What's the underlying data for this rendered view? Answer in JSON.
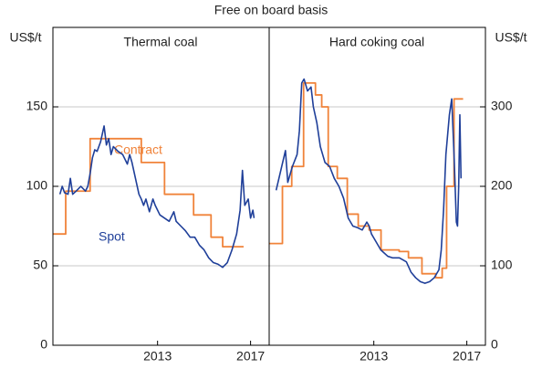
{
  "title": "Free on board basis",
  "chart_data": [
    {
      "type": "line",
      "title": "Thermal coal",
      "y_label": "US$/t",
      "xlim": [
        2009.0,
        2018.3
      ],
      "xticks": [
        {
          "value": 2013.5,
          "label": "2013"
        },
        {
          "value": 2017.5,
          "label": "2017"
        }
      ],
      "ylim": [
        0,
        200
      ],
      "yticks": [
        0,
        50,
        100,
        150
      ],
      "grid": true,
      "series": [
        {
          "name": "Contract",
          "color": "#f0833a",
          "step": true,
          "x": [
            2009.0,
            2009.55,
            2010.6,
            2011.6,
            2012.8,
            2013.8,
            2015.05,
            2015.8,
            2016.3,
            2017.2
          ],
          "values": [
            70,
            97,
            130,
            130,
            115,
            95,
            82,
            68,
            62,
            62
          ]
        },
        {
          "name": "Spot",
          "color": "#1f3f99",
          "step": false,
          "x": [
            2009.3,
            2009.4,
            2009.5,
            2009.65,
            2009.75,
            2009.85,
            2010.0,
            2010.2,
            2010.4,
            2010.5,
            2010.6,
            2010.7,
            2010.8,
            2010.9,
            2011.05,
            2011.2,
            2011.3,
            2011.4,
            2011.5,
            2011.6,
            2011.8,
            2012.0,
            2012.2,
            2012.3,
            2012.4,
            2012.55,
            2012.7,
            2012.8,
            2012.9,
            2013.0,
            2013.15,
            2013.3,
            2013.4,
            2013.6,
            2013.8,
            2014.0,
            2014.2,
            2014.3,
            2014.5,
            2014.7,
            2014.9,
            2015.1,
            2015.3,
            2015.5,
            2015.7,
            2015.9,
            2016.1,
            2016.3,
            2016.5,
            2016.7,
            2016.9,
            2017.05,
            2017.15,
            2017.25,
            2017.4,
            2017.5,
            2017.6,
            2017.65
          ],
          "values": [
            95,
            100,
            96,
            95,
            105,
            95,
            97,
            100,
            97,
            100,
            108,
            118,
            123,
            122,
            128,
            138,
            126,
            130,
            120,
            125,
            122,
            120,
            114,
            120,
            115,
            105,
            95,
            92,
            88,
            92,
            84,
            92,
            88,
            82,
            80,
            78,
            84,
            78,
            75,
            72,
            68,
            68,
            63,
            60,
            55,
            52,
            51,
            49,
            52,
            60,
            70,
            85,
            110,
            88,
            92,
            80,
            85,
            80
          ]
        }
      ]
    },
    {
      "type": "line",
      "title": "Hard coking coal",
      "y_label": "US$/t",
      "xlim": [
        2009.0,
        2018.3
      ],
      "xticks": [
        {
          "value": 2013.5,
          "label": "2013"
        },
        {
          "value": 2017.5,
          "label": "2017"
        }
      ],
      "ylim": [
        0,
        400
      ],
      "yticks": [
        0,
        100,
        200,
        300
      ],
      "grid": true,
      "series": [
        {
          "color": "#f0833a",
          "step": true,
          "x": [
            2009.0,
            2009.57,
            2009.97,
            2010.48,
            2010.99,
            2011.26,
            2011.54,
            2011.93,
            2012.36,
            2012.83,
            2013.3,
            2013.81,
            2014.59,
            2014.99,
            2015.57,
            2016.16,
            2016.44,
            2016.63,
            2016.95,
            2017.34
          ],
          "values": [
            128,
            200,
            225,
            330,
            315,
            300,
            225,
            210,
            165,
            150,
            145,
            120,
            118,
            110,
            90,
            85,
            97,
            200,
            310,
            310
          ]
        },
        {
          "color": "#1f3f99",
          "step": false,
          "x": [
            2009.3,
            2009.5,
            2009.7,
            2009.8,
            2010.0,
            2010.2,
            2010.3,
            2010.4,
            2010.5,
            2010.65,
            2010.8,
            2010.9,
            2011.05,
            2011.2,
            2011.3,
            2011.4,
            2011.6,
            2011.8,
            2012.0,
            2012.2,
            2012.4,
            2012.6,
            2012.8,
            2013.0,
            2013.2,
            2013.3,
            2013.4,
            2013.6,
            2013.8,
            2014.1,
            2014.3,
            2014.6,
            2014.9,
            2015.1,
            2015.3,
            2015.5,
            2015.7,
            2015.9,
            2016.1,
            2016.3,
            2016.4,
            2016.5,
            2016.6,
            2016.75,
            2016.85,
            2016.95,
            2017.05,
            2017.1,
            2017.15,
            2017.2,
            2017.25
          ],
          "values": [
            195,
            220,
            245,
            205,
            225,
            240,
            270,
            330,
            335,
            320,
            325,
            300,
            280,
            250,
            240,
            230,
            225,
            210,
            200,
            185,
            160,
            150,
            148,
            145,
            155,
            150,
            140,
            130,
            120,
            112,
            110,
            110,
            105,
            92,
            85,
            80,
            78,
            80,
            85,
            95,
            120,
            170,
            240,
            290,
            310,
            240,
            155,
            150,
            200,
            290,
            210
          ]
        }
      ]
    }
  ]
}
